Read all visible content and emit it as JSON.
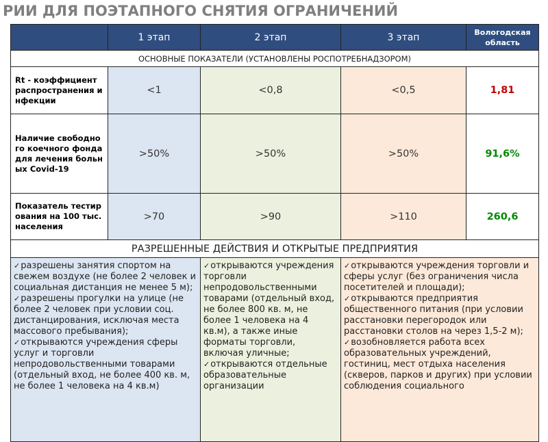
{
  "title": "РИИ ДЛЯ ПОЭТАПНОГО СНЯТИЯ ОГРАНИЧЕНИЙ",
  "table": {
    "header": [
      "1 этап",
      "2 этап",
      "3 этап",
      "Вологодская область"
    ],
    "section_1": "ОСНОВНЫЕ ПОКАЗАТЕЛИ (УСТАНОВЛЕНЫ РОСПОТРЕБНАДЗОРОМ)",
    "rows": [
      [
        "Rt - коэффициент распространения инфекции",
        "<1",
        "<0,8",
        "<0,5",
        "1,81"
      ],
      [
        "Наличие свободного коечного фонда для лечения больных Covid-19",
        ">50%",
        ">50%",
        ">50%",
        "91,6%"
      ],
      [
        "Показатель тестирования на 100 тыс. населения",
        ">70",
        ">90",
        ">110",
        "260,6"
      ]
    ],
    "section_2": "РАЗРЕШЕННЫЕ ДЕЙСТВИЯ И ОТКРЫТЫЕ ПРЕДПРИЯТИЯ",
    "actions": [
      [
        "разрешены занятия спортом на свежем воздухе (не более 2 человек и социальная дистанция не менее 5 м);",
        "разрешены прогулки на улице (не более 2 человек при условии соц. дистанцирования, исключая места массового пребывания);",
        "открываются учреждения сферы услуг и торговли непродовольственными товарами (отдельный вход, не более 400 кв. м, не более 1 человека на 4 кв.м)"
      ],
      [
        "открываются учреждения торговли непродовольственными товарами (отдельный вход, не более 800 кв. м, не более 1 человека на 4 кв.м), а также иные форматы торговли, включая уличные;",
        "открываются отдельные образовательные организации"
      ],
      [
        "открываются учреждения торговли и сферы услуг (без ограничения числа посетителей и площади);",
        "открываются предприятия общественного питания (при условии расстановки перегородок или расстановки столов на через 1,5-2 м);",
        "возобновляется работа всех образовательных учреждений, гостиниц, мест отдыха населения (скверов, парков и других) при условии соблюдения социального"
      ]
    ]
  }
}
